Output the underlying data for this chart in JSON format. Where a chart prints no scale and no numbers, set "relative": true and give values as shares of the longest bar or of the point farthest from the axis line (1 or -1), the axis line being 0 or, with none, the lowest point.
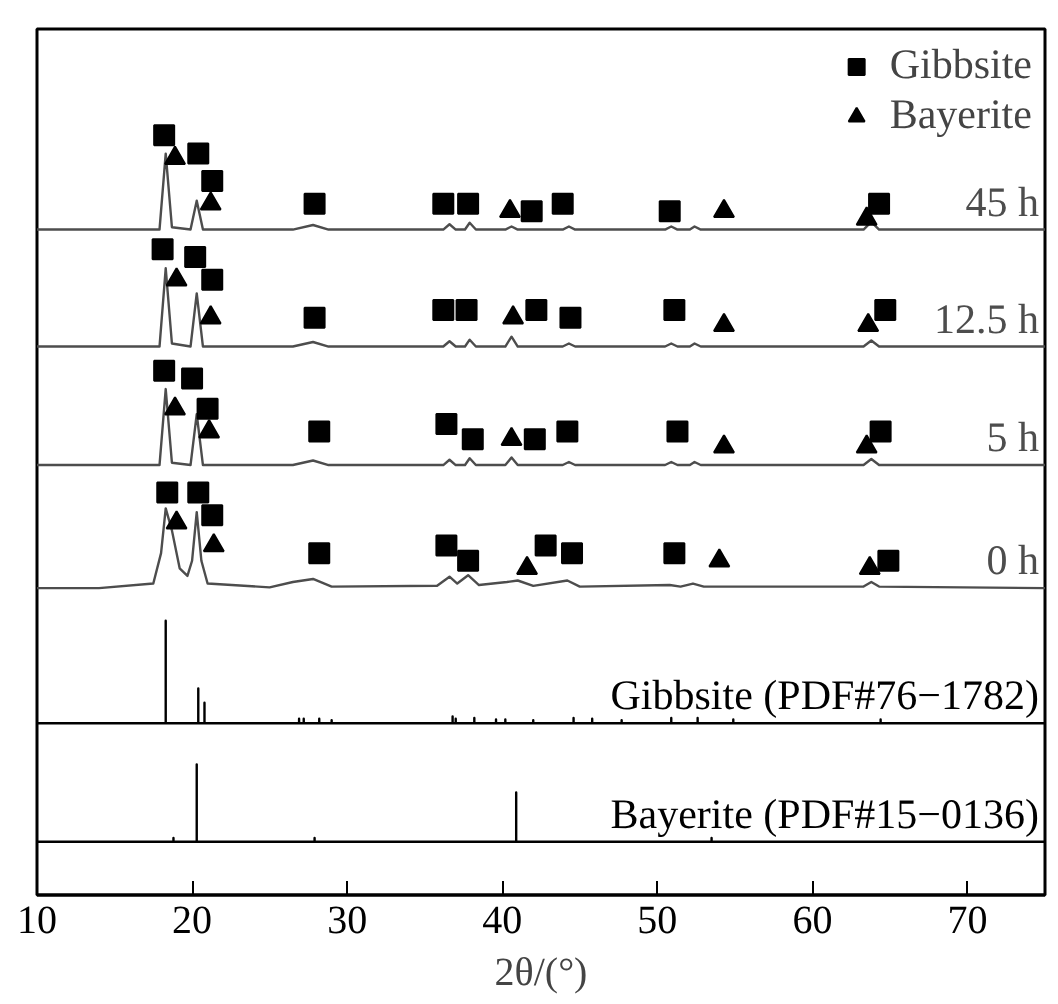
{
  "chart_data": {
    "type": "line",
    "relative": true,
    "xlabel": "2θ/(°)",
    "xlim": [
      10,
      75
    ],
    "xticks": [
      10,
      20,
      30,
      40,
      50,
      60,
      70
    ],
    "grid": false,
    "legend": "top right",
    "series": [
      {
        "name": "45 h",
        "color": "#4d4d4d",
        "x": [
          10,
          17.9,
          18.3,
          18.7,
          19.9,
          20.3,
          20.7,
          26.5,
          27.8,
          28.8,
          36.2,
          36.6,
          37.0,
          37.6,
          37.9,
          38.3,
          40.2,
          40.6,
          41.0,
          43.9,
          44.3,
          44.7,
          50.5,
          50.9,
          51.3,
          52.1,
          52.4,
          52.8,
          63.3,
          63.8,
          64.3,
          75
        ],
        "values": [
          0.876,
          0.876,
          0.976,
          0.879,
          0.876,
          0.914,
          0.876,
          0.876,
          0.882,
          0.876,
          0.876,
          0.883,
          0.876,
          0.876,
          0.885,
          0.876,
          0.876,
          0.88,
          0.876,
          0.876,
          0.88,
          0.876,
          0.876,
          0.88,
          0.876,
          0.876,
          0.88,
          0.876,
          0.876,
          0.886,
          0.876,
          0.876
        ]
      },
      {
        "name": "12.5 h",
        "color": "#4d4d4d",
        "x": [
          10,
          17.9,
          18.3,
          18.7,
          19.9,
          20.3,
          20.7,
          26.5,
          27.8,
          28.8,
          36.2,
          36.6,
          37.0,
          37.6,
          37.9,
          38.3,
          40.2,
          40.6,
          41.0,
          43.9,
          44.3,
          44.7,
          50.5,
          50.9,
          51.3,
          52.1,
          52.4,
          52.8,
          63.3,
          63.8,
          64.3,
          75
        ],
        "values": [
          0.722,
          0.722,
          0.825,
          0.726,
          0.722,
          0.792,
          0.722,
          0.722,
          0.728,
          0.722,
          0.722,
          0.729,
          0.722,
          0.722,
          0.731,
          0.722,
          0.722,
          0.735,
          0.722,
          0.722,
          0.726,
          0.722,
          0.722,
          0.726,
          0.722,
          0.722,
          0.726,
          0.722,
          0.722,
          0.73,
          0.722,
          0.722
        ]
      },
      {
        "name": "5 h",
        "color": "#4d4d4d",
        "x": [
          10,
          17.9,
          18.3,
          18.7,
          19.9,
          20.3,
          20.7,
          26.5,
          27.8,
          28.8,
          36.2,
          36.6,
          37.0,
          37.6,
          37.9,
          38.3,
          40.2,
          40.6,
          41.0,
          43.9,
          44.3,
          44.7,
          50.5,
          50.9,
          51.3,
          52.1,
          52.4,
          52.8,
          63.3,
          63.8,
          64.3,
          75
        ],
        "values": [
          0.566,
          0.566,
          0.666,
          0.569,
          0.566,
          0.633,
          0.566,
          0.566,
          0.572,
          0.566,
          0.566,
          0.573,
          0.566,
          0.566,
          0.575,
          0.566,
          0.566,
          0.576,
          0.566,
          0.566,
          0.57,
          0.566,
          0.566,
          0.57,
          0.566,
          0.566,
          0.57,
          0.566,
          0.566,
          0.574,
          0.566,
          0.566
        ]
      },
      {
        "name": "0 h",
        "color": "#4d4d4d",
        "x": [
          10,
          14,
          17.5,
          18.0,
          18.3,
          18.7,
          19.2,
          19.7,
          20.0,
          20.3,
          20.6,
          21.0,
          25,
          26.5,
          27.8,
          29,
          35.8,
          36.6,
          37.1,
          37.8,
          38.5,
          40.3,
          41.0,
          42,
          44.2,
          45,
          50.8,
          51.5,
          52.3,
          53,
          63.3,
          63.8,
          64.3,
          75
        ],
        "values": [
          0.404,
          0.404,
          0.41,
          0.45,
          0.509,
          0.48,
          0.43,
          0.42,
          0.44,
          0.504,
          0.44,
          0.41,
          0.405,
          0.412,
          0.416,
          0.406,
          0.407,
          0.419,
          0.41,
          0.421,
          0.408,
          0.412,
          0.414,
          0.407,
          0.414,
          0.406,
          0.408,
          0.406,
          0.41,
          0.406,
          0.406,
          0.412,
          0.406,
          0.404
        ]
      },
      {
        "name": "Gibbsite (PDF#76−1782)",
        "color": "#000000",
        "x": [
          10,
          18.3,
          18.3,
          18.3,
          20.4,
          20.4,
          20.4,
          20.8,
          20.8,
          20.8,
          26.9,
          26.9,
          26.9,
          27.2,
          27.2,
          27.2,
          28.2,
          28.2,
          28.2,
          29.0,
          29.0,
          29.0,
          36.8,
          36.8,
          36.8,
          37.0,
          37.0,
          37.0,
          38.2,
          38.2,
          38.2,
          39.6,
          39.6,
          39.6,
          40.2,
          40.2,
          40.2,
          42.0,
          42.0,
          42.0,
          44.6,
          44.6,
          44.6,
          45.8,
          45.8,
          45.8,
          47.7,
          47.7,
          47.7,
          50.9,
          50.9,
          50.9,
          52.6,
          52.6,
          52.6,
          54.9,
          54.9,
          54.9,
          64.4,
          64.4,
          64.4,
          75
        ],
        "values": [
          0.226,
          0.226,
          0.361,
          0.226,
          0.226,
          0.272,
          0.226,
          0.226,
          0.253,
          0.226,
          0.226,
          0.232,
          0.226,
          0.226,
          0.232,
          0.226,
          0.226,
          0.232,
          0.226,
          0.226,
          0.23,
          0.226,
          0.226,
          0.235,
          0.226,
          0.226,
          0.232,
          0.226,
          0.226,
          0.233,
          0.226,
          0.226,
          0.231,
          0.226,
          0.226,
          0.231,
          0.226,
          0.226,
          0.23,
          0.226,
          0.226,
          0.233,
          0.226,
          0.226,
          0.232,
          0.226,
          0.226,
          0.23,
          0.226,
          0.226,
          0.233,
          0.226,
          0.226,
          0.233,
          0.226,
          0.226,
          0.231,
          0.226,
          0.226,
          0.231,
          0.226,
          0.226
        ]
      },
      {
        "name": "Bayerite (PDF#15−0136)",
        "color": "#000000",
        "x": [
          10,
          18.8,
          18.8,
          18.8,
          20.3,
          20.3,
          20.3,
          27.9,
          27.9,
          27.9,
          40.9,
          40.9,
          40.9,
          53.5,
          53.5,
          53.5,
          75
        ],
        "values": [
          0.07,
          0.07,
          0.075,
          0.07,
          0.07,
          0.172,
          0.07,
          0.07,
          0.075,
          0.07,
          0.07,
          0.135,
          0.07,
          0.07,
          0.075,
          0.07,
          0.07
        ]
      },
      {
        "name": "Gibbsite",
        "type": "scatter",
        "marker": "square",
        "color": "#000000",
        "x": [
          18.2,
          20.4,
          21.3,
          27.9,
          36.2,
          37.8,
          41.9,
          43.9,
          50.8,
          64.3,
          18.1,
          20.2,
          21.3,
          27.9,
          36.2,
          37.7,
          42.2,
          44.4,
          51.1,
          64.7,
          18.2,
          20.0,
          21.0,
          28.2,
          36.4,
          38.1,
          42.1,
          44.2,
          51.3,
          64.4,
          18.4,
          20.4,
          21.3,
          28.2,
          36.4,
          37.8,
          42.8,
          44.5,
          51.1,
          64.9
        ],
        "values": [
          1.0,
          0.976,
          0.94,
          0.91,
          0.91,
          0.91,
          0.9,
          0.91,
          0.9,
          0.91,
          0.85,
          0.84,
          0.81,
          0.76,
          0.77,
          0.77,
          0.77,
          0.76,
          0.77,
          0.77,
          0.69,
          0.68,
          0.64,
          0.61,
          0.62,
          0.6,
          0.6,
          0.61,
          0.61,
          0.61,
          0.53,
          0.53,
          0.5,
          0.45,
          0.46,
          0.44,
          0.46,
          0.45,
          0.45,
          0.44
        ]
      },
      {
        "name": "Bayerite",
        "type": "scatter",
        "marker": "triangle",
        "color": "#000000",
        "x": [
          18.9,
          21.2,
          40.5,
          54.3,
          63.5,
          19.0,
          21.2,
          40.7,
          54.3,
          63.6,
          18.9,
          21.1,
          40.6,
          54.3,
          63.5,
          19.0,
          21.4,
          41.6,
          54.0,
          63.7
        ],
        "values": [
          0.97,
          0.91,
          0.9,
          0.9,
          0.89,
          0.81,
          0.76,
          0.76,
          0.75,
          0.75,
          0.64,
          0.61,
          0.6,
          0.59,
          0.59,
          0.49,
          0.46,
          0.43,
          0.44,
          0.43
        ]
      }
    ]
  }
}
